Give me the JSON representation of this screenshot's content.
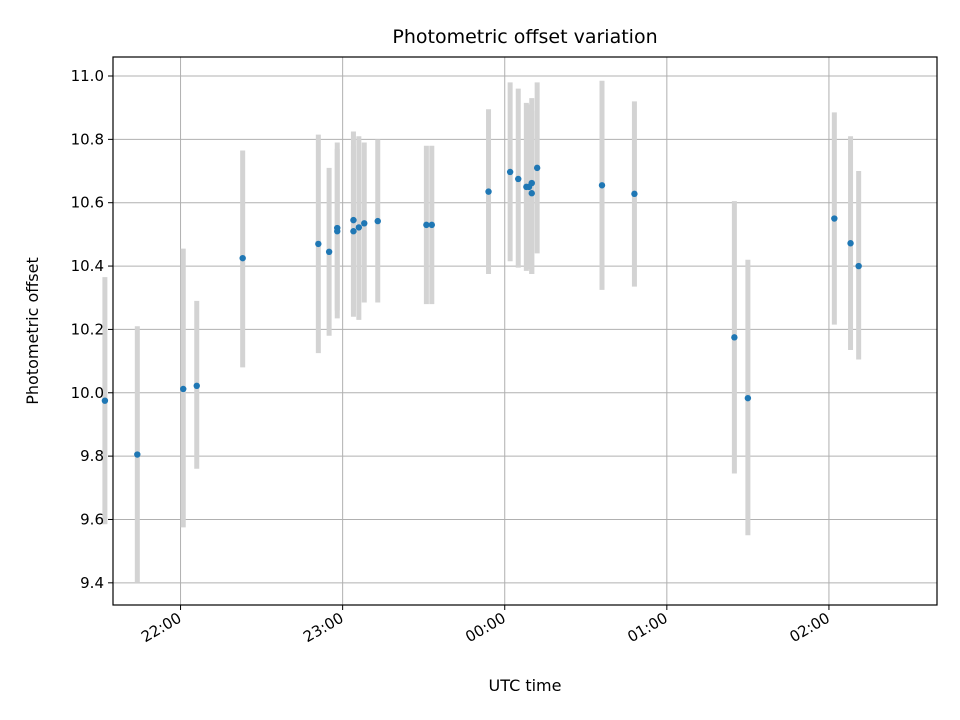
{
  "chart_data": {
    "type": "scatter",
    "title": "Photometric offset variation",
    "xlabel": "UTC time",
    "ylabel": "Photometric offset",
    "x_tick_labels": [
      "22:00",
      "23:00",
      "00:00",
      "01:00",
      "02:00"
    ],
    "y_tick_labels": [
      "9.4",
      "9.6",
      "9.8",
      "10.0",
      "10.2",
      "10.4",
      "10.6",
      "10.8",
      "11.0"
    ],
    "x_ticks": [
      "22:00",
      "23:00",
      "00:00",
      "01:00",
      "02:00"
    ],
    "y_ticks": [
      9.4,
      9.6,
      9.8,
      10.0,
      10.2,
      10.4,
      10.6,
      10.8,
      11.0
    ],
    "xlim": [
      "21:35",
      "02:40"
    ],
    "ylim": [
      9.33,
      11.06
    ],
    "grid": true,
    "marker_color": "#1f77b4",
    "errorbar_color": "#d3d3d3",
    "points": [
      {
        "x": "21:32",
        "y": 9.975,
        "ylo": 9.585,
        "yhi": 10.365
      },
      {
        "x": "21:44",
        "y": 9.805,
        "ylo": 9.4,
        "yhi": 10.21
      },
      {
        "x": "22:01",
        "y": 10.012,
        "ylo": 9.575,
        "yhi": 10.455
      },
      {
        "x": "22:06",
        "y": 10.022,
        "ylo": 9.76,
        "yhi": 10.29
      },
      {
        "x": "22:23",
        "y": 10.425,
        "ylo": 10.08,
        "yhi": 10.765
      },
      {
        "x": "22:51",
        "y": 10.47,
        "ylo": 10.125,
        "yhi": 10.815
      },
      {
        "x": "22:55",
        "y": 10.445,
        "ylo": 10.18,
        "yhi": 10.71
      },
      {
        "x": "22:58",
        "y": 10.52,
        "ylo": 10.235,
        "yhi": 10.79
      },
      {
        "x": "22:58",
        "y": 10.51,
        "ylo": 10.26,
        "yhi": 10.77
      },
      {
        "x": "23:04",
        "y": 10.51,
        "ylo": 10.24,
        "yhi": 10.78
      },
      {
        "x": "23:04",
        "y": 10.545,
        "ylo": 10.26,
        "yhi": 10.825
      },
      {
        "x": "23:06",
        "y": 10.522,
        "ylo": 10.23,
        "yhi": 10.81
      },
      {
        "x": "23:08",
        "y": 10.535,
        "ylo": 10.285,
        "yhi": 10.79
      },
      {
        "x": "23:13",
        "y": 10.542,
        "ylo": 10.285,
        "yhi": 10.8
      },
      {
        "x": "23:31",
        "y": 10.53,
        "ylo": 10.28,
        "yhi": 10.78
      },
      {
        "x": "23:33",
        "y": 10.53,
        "ylo": 10.28,
        "yhi": 10.78
      },
      {
        "x": "23:54",
        "y": 10.635,
        "ylo": 10.375,
        "yhi": 10.895
      },
      {
        "x": "00:02",
        "y": 10.697,
        "ylo": 10.415,
        "yhi": 10.98
      },
      {
        "x": "00:05",
        "y": 10.675,
        "ylo": 10.395,
        "yhi": 10.96
      },
      {
        "x": "00:08",
        "y": 10.65,
        "ylo": 10.385,
        "yhi": 10.915
      },
      {
        "x": "00:09",
        "y": 10.65,
        "ylo": 10.39,
        "yhi": 10.91
      },
      {
        "x": "00:10",
        "y": 10.63,
        "ylo": 10.375,
        "yhi": 10.89
      },
      {
        "x": "00:10",
        "y": 10.662,
        "ylo": 10.375,
        "yhi": 10.93
      },
      {
        "x": "00:12",
        "y": 10.71,
        "ylo": 10.44,
        "yhi": 10.98
      },
      {
        "x": "00:36",
        "y": 10.655,
        "ylo": 10.325,
        "yhi": 10.985
      },
      {
        "x": "00:48",
        "y": 10.628,
        "ylo": 10.335,
        "yhi": 10.92
      },
      {
        "x": "01:25",
        "y": 10.175,
        "ylo": 9.745,
        "yhi": 10.605
      },
      {
        "x": "01:30",
        "y": 9.983,
        "ylo": 9.55,
        "yhi": 10.42
      },
      {
        "x": "02:02",
        "y": 10.55,
        "ylo": 10.215,
        "yhi": 10.885
      },
      {
        "x": "02:08",
        "y": 10.472,
        "ylo": 10.135,
        "yhi": 10.81
      },
      {
        "x": "02:11",
        "y": 10.4,
        "ylo": 10.105,
        "yhi": 10.7
      }
    ]
  }
}
